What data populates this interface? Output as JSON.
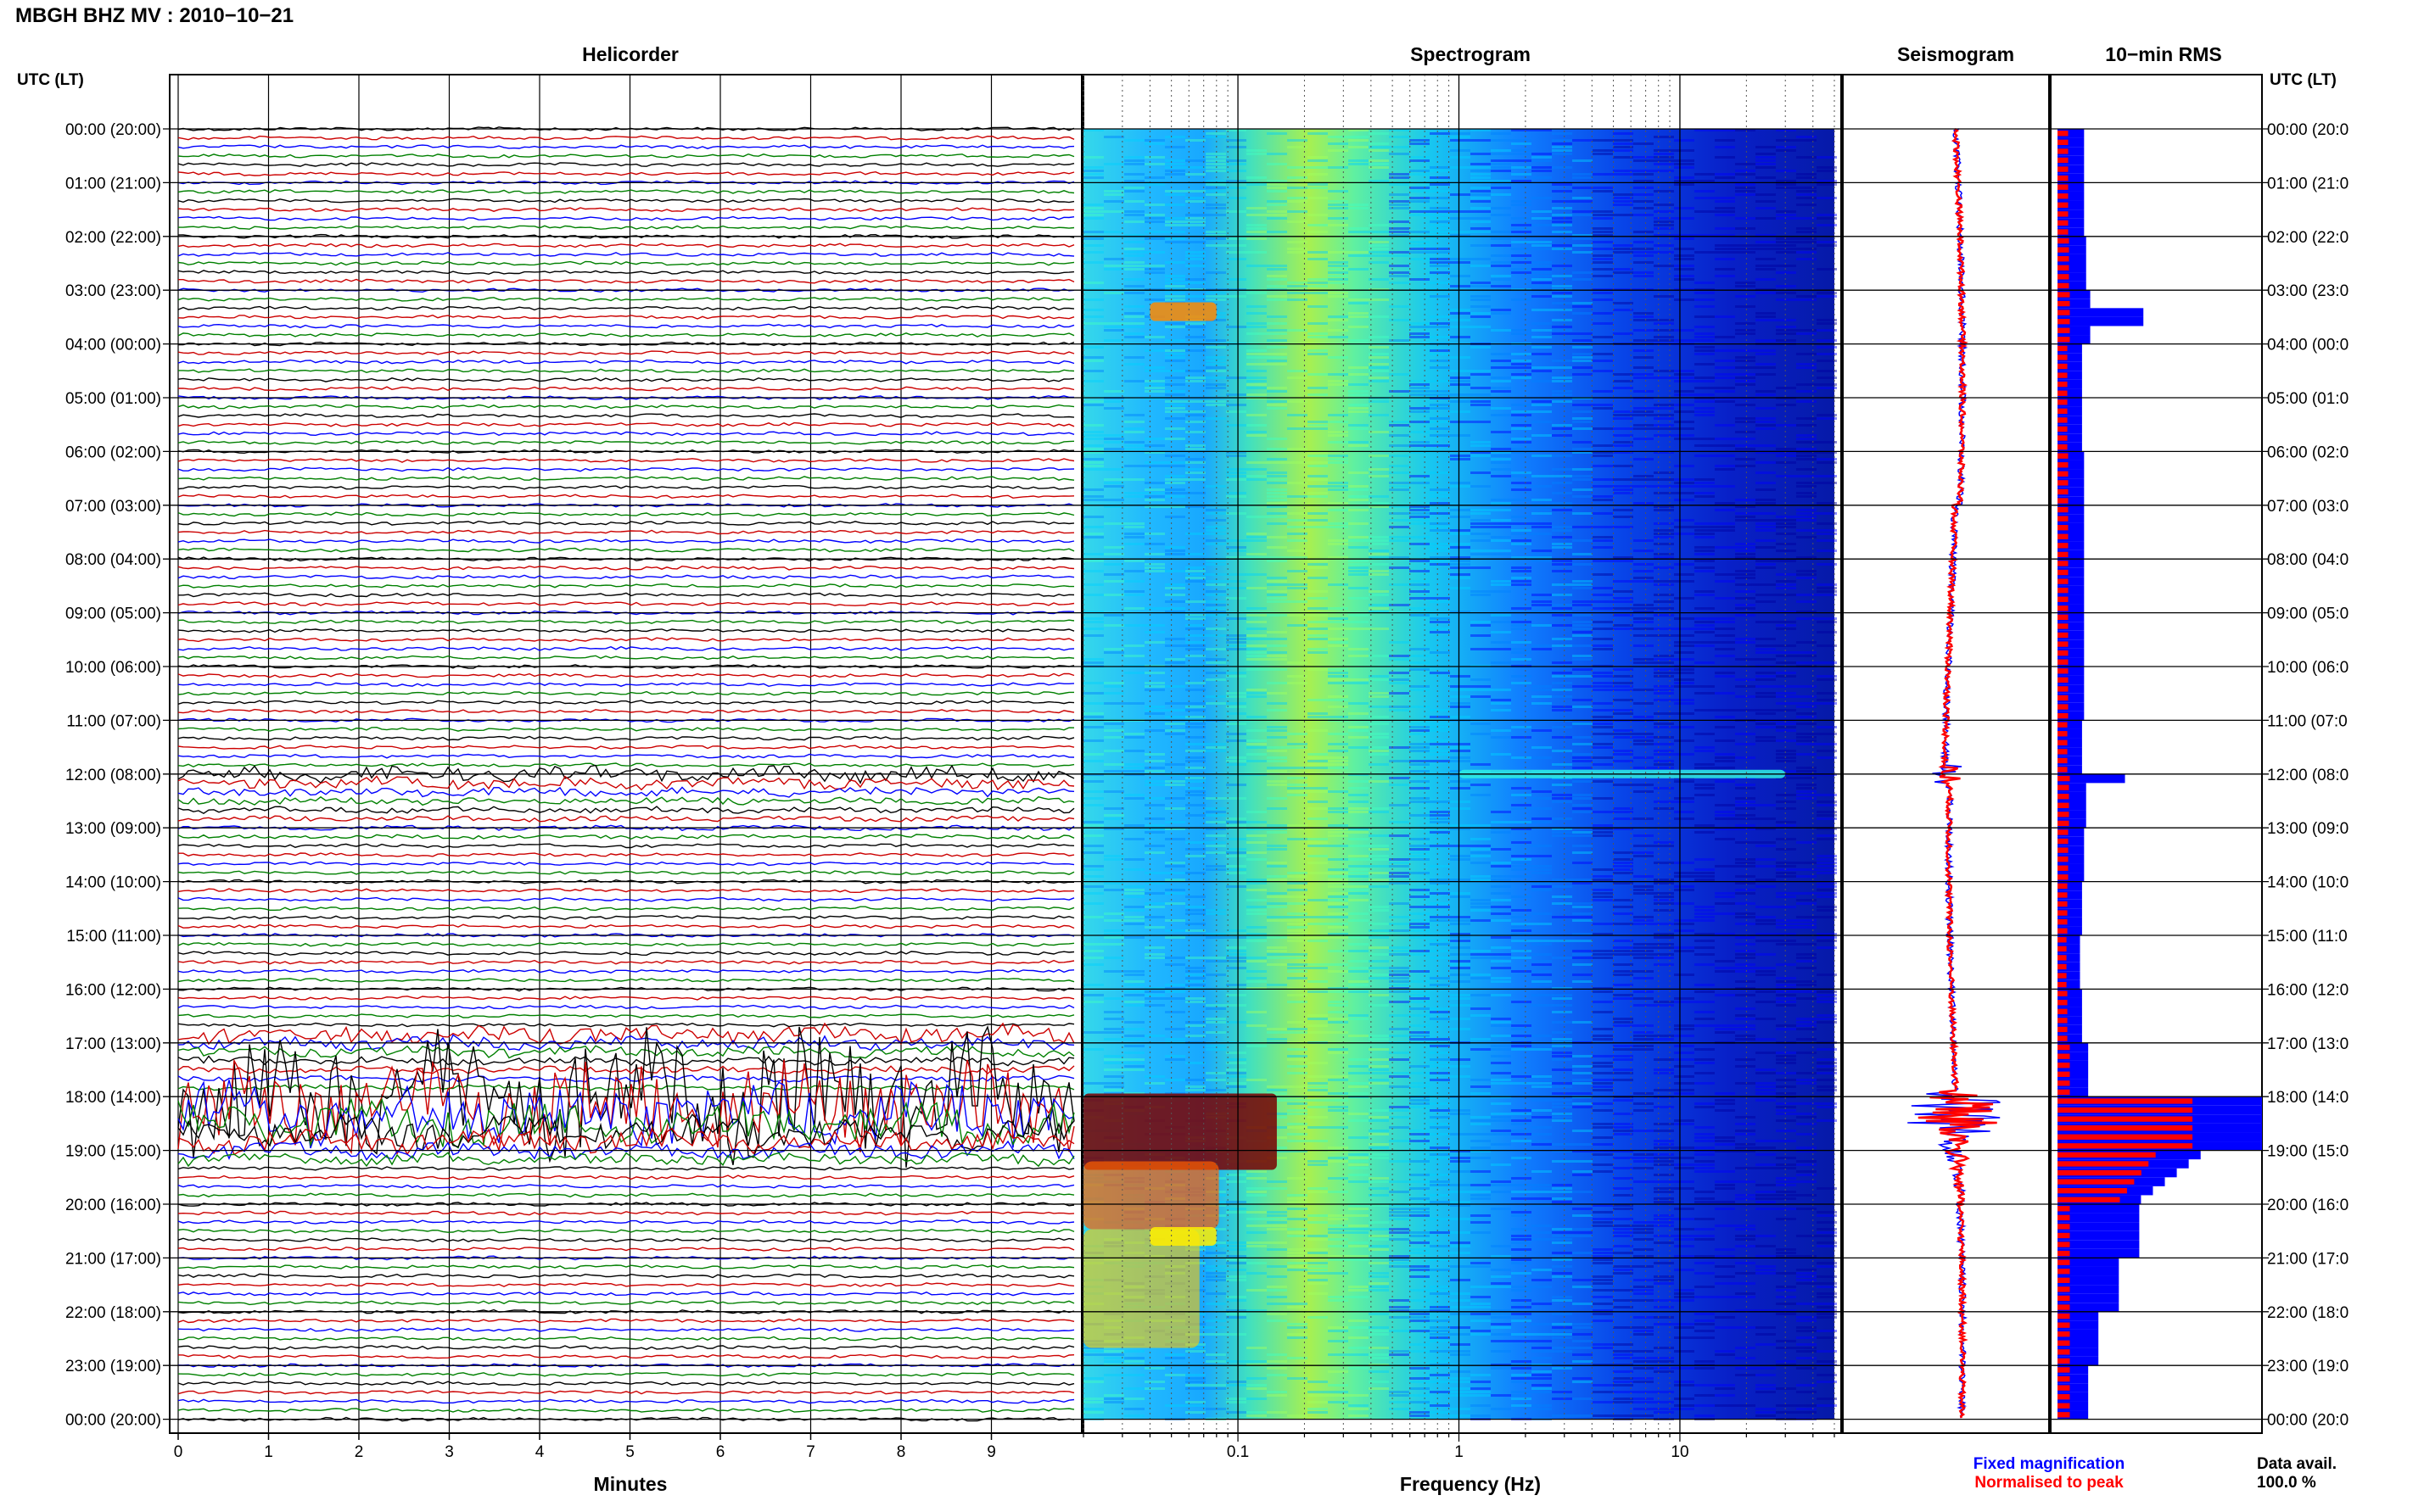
{
  "header": {
    "title": "MBGH BHZ MV : 2010−10−21"
  },
  "panels": {
    "helicorder": "Helicorder",
    "spectrogram": "Spectrogram",
    "seismogram": "Seismogram",
    "rms": "10−min RMS"
  },
  "axis_labels": {
    "left_time": "UTC (LT)",
    "right_time": "UTC (LT)",
    "helicorder_x": "Minutes",
    "spectrogram_x": "Frequency (Hz)"
  },
  "legend": {
    "fixed": "Fixed magnification",
    "normalised": "Normalised to peak",
    "fixed_color": "#0000ff",
    "normalised_color": "#ff0000"
  },
  "data_avail": {
    "label": "Data avail.",
    "value": "100.0 %"
  },
  "trace_colors": [
    "#000000",
    "#cc0000",
    "#0000ff",
    "#008000"
  ],
  "chart_data": [
    {
      "type": "line",
      "panel": "Helicorder",
      "xlabel": "Minutes",
      "x_ticks": [
        "0",
        "1",
        "2",
        "3",
        "4",
        "5",
        "6",
        "7",
        "8",
        "9"
      ],
      "xlim": [
        0,
        10
      ],
      "ylabel": "UTC (LT)",
      "y_ticks_left": [
        "00:00 (20:00)",
        "01:00 (21:00)",
        "02:00 (22:00)",
        "03:00 (23:00)",
        "04:00 (00:00)",
        "05:00 (01:00)",
        "06:00 (02:00)",
        "07:00 (03:00)",
        "08:00 (04:00)",
        "09:00 (05:00)",
        "10:00 (06:00)",
        "11:00 (07:00)",
        "12:00 (08:00)",
        "13:00 (09:00)",
        "14:00 (10:00)",
        "15:00 (11:00)",
        "16:00 (12:00)",
        "17:00 (13:00)",
        "18:00 (14:00)",
        "19:00 (15:00)",
        "20:00 (16:00)",
        "21:00 (17:00)",
        "22:00 (18:00)",
        "23:00 (19:00)",
        "00:00 (20:00)"
      ],
      "y_ticks_right": [
        "00:00 (20:0",
        "01:00 (21:0",
        "02:00 (22:0",
        "03:00 (23:0",
        "04:00 (00:0",
        "05:00 (01:0",
        "06:00 (02:0",
        "07:00 (03:0",
        "08:00 (04:0",
        "09:00 (05:0",
        "10:00 (06:0",
        "11:00 (07:0",
        "12:00 (08:0",
        "13:00 (09:0",
        "14:00 (10:0",
        "15:00 (11:0",
        "16:00 (12:0",
        "17:00 (13:0",
        "18:00 (14:0",
        "19:00 (15:0",
        "20:00 (16:0",
        "21:00 (17:0",
        "22:00 (18:0",
        "23:00 (19:0",
        "00:00 (20:0"
      ],
      "rows_per_hour": 6,
      "hours": 24,
      "events": [
        {
          "hour": 12.0,
          "amp": 0.6
        },
        {
          "hour": 16.8,
          "amp": 0.8
        },
        {
          "hour": 18.0,
          "amp": 6.0
        }
      ]
    },
    {
      "type": "heatmap",
      "panel": "Spectrogram",
      "xlabel": "Frequency (Hz)",
      "x_scale": "log",
      "xlim": [
        0.02,
        50
      ],
      "x_ticks": [
        "0.1",
        "1",
        "10"
      ],
      "colormap": [
        "#0000a0",
        "#0000ff",
        "#0080ff",
        "#00d0ff",
        "#40ffc0",
        "#a0ff60",
        "#ffff00",
        "#ff8000",
        "#ff0000",
        "#800000"
      ],
      "features": [
        {
          "time_hour": 3.4,
          "freq": [
            0.04,
            0.08
          ],
          "level": "orange"
        },
        {
          "time_hour": 12.0,
          "freq": [
            1,
            30
          ],
          "level": "cyan"
        },
        {
          "time_hour": 18.1,
          "freq": [
            0.02,
            0.15
          ],
          "level": "dark red"
        },
        {
          "time_hour": 20.6,
          "freq": [
            0.04,
            0.08
          ],
          "level": "yellow"
        }
      ]
    },
    {
      "type": "line",
      "panel": "Seismogram",
      "series": [
        {
          "name": "Fixed magnification",
          "color": "#0000ff"
        },
        {
          "name": "Normalised to peak",
          "color": "#ff0000"
        }
      ],
      "peak_hour": 18.3
    },
    {
      "type": "bar",
      "panel": "10−min RMS",
      "orientation": "horizontal",
      "series": [
        {
          "name": "Fixed magnification",
          "color": "#0000ff"
        },
        {
          "name": "Normalised to peak",
          "color": "#ff0000"
        }
      ],
      "bins_per_hour": 6,
      "rms_fixed_hourly": [
        0.13,
        0.13,
        0.14,
        0.16,
        0.12,
        0.12,
        0.13,
        0.13,
        0.13,
        0.13,
        0.13,
        0.12,
        0.14,
        0.13,
        0.12,
        0.11,
        0.12,
        0.15,
        1.0,
        0.9,
        0.4,
        0.3,
        0.2,
        0.15
      ],
      "rms_spikes": [
        {
          "hour": 3.4,
          "value": 0.42
        },
        {
          "hour": 12.0,
          "value": 0.33
        },
        {
          "hour": 18.0,
          "value": 1.0
        },
        {
          "hour": 18.5,
          "value": 0.95
        }
      ]
    }
  ]
}
